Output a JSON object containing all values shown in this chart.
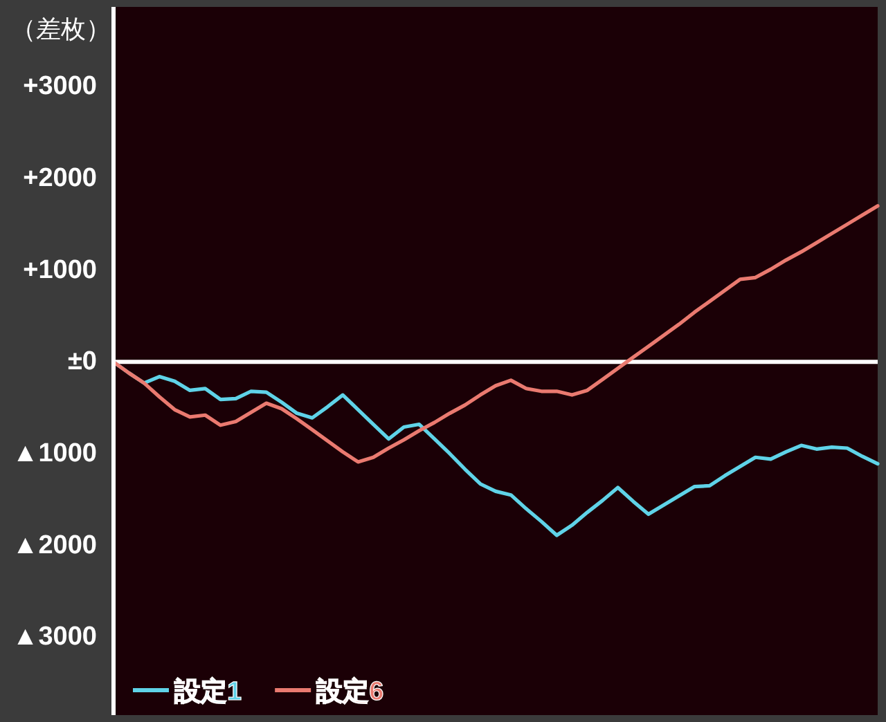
{
  "chart_data": {
    "type": "line",
    "ylabel": "（差枚）",
    "categories": [
      null,
      null,
      null,
      null,
      null,
      null,
      null,
      null,
      null,
      null,
      null,
      null,
      null,
      null,
      null,
      null,
      null,
      null,
      null,
      null,
      null,
      null,
      null,
      null,
      null,
      null,
      null,
      null,
      null,
      null,
      null,
      null,
      null,
      null,
      null,
      null,
      null,
      null,
      null,
      null,
      null,
      null,
      null,
      null,
      null,
      null,
      null,
      null,
      null,
      null,
      null
    ],
    "series": [
      {
        "name": "設定1",
        "color": "#5fd3e8",
        "values": [
          0,
          -120,
          -230,
          -160,
          -210,
          -310,
          -290,
          -410,
          -400,
          -320,
          -330,
          -440,
          -560,
          -610,
          -490,
          -360,
          -520,
          -680,
          -840,
          -710,
          -680,
          -840,
          -1000,
          -1170,
          -1330,
          -1410,
          -1450,
          -1600,
          -1740,
          -1890,
          -1780,
          -1640,
          -1510,
          -1370,
          -1520,
          -1660,
          -1560,
          -1460,
          -1360,
          -1350,
          -1240,
          -1140,
          -1040,
          -1060,
          -980,
          -910,
          -950,
          -930,
          -940,
          -1030,
          -1110
        ]
      },
      {
        "name": "設定6",
        "color": "#ea7a70",
        "values": [
          0,
          -120,
          -230,
          -380,
          -520,
          -600,
          -580,
          -690,
          -650,
          -550,
          -450,
          -510,
          -620,
          -740,
          -860,
          -980,
          -1090,
          -1040,
          -940,
          -850,
          -750,
          -660,
          -560,
          -470,
          -360,
          -260,
          -200,
          -290,
          -320,
          -320,
          -360,
          -310,
          -190,
          -70,
          50,
          170,
          290,
          410,
          540,
          660,
          780,
          900,
          920,
          1010,
          1110,
          1200,
          1300,
          1400,
          1500,
          1600,
          1700
        ]
      }
    ],
    "ylim": [
      -3850,
      3870
    ],
    "yticks": [
      {
        "value": 3000,
        "label": "+3000"
      },
      {
        "value": 2000,
        "label": "+2000"
      },
      {
        "value": 1000,
        "label": "+1000"
      },
      {
        "value": 0,
        "label": "±0"
      },
      {
        "value": -1000,
        "label": "▲1000"
      },
      {
        "value": -2000,
        "label": "▲2000"
      },
      {
        "value": -3000,
        "label": "▲3000"
      }
    ],
    "ref_lines": [
      {
        "axis": "y",
        "value": 0,
        "color": "#ffffff"
      }
    ],
    "tick_labels": "y",
    "legend": "bottom left"
  }
}
